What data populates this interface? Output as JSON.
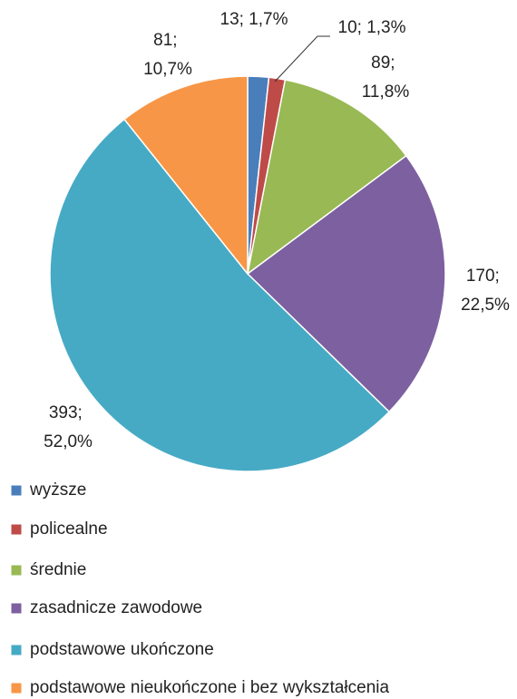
{
  "chart_data": {
    "type": "pie",
    "categories": [
      "wyższe",
      "policealne",
      "średnie",
      "zasadnicze zawodowe",
      "podstawowe ukończone",
      "podstawowe nieukończone i bez wykształcenia"
    ],
    "values": [
      13,
      10,
      89,
      170,
      393,
      81
    ],
    "value_labels": [
      "13; 1,7%",
      "10; 1,3%",
      "89; 11,8%",
      "170; 22,5%",
      "393; 52,0%",
      "81; 10,7%"
    ],
    "colors": [
      "#4a7ebb",
      "#be4b48",
      "#98b954",
      "#7d60a0",
      "#46aac5",
      "#f79646"
    ],
    "legend": "bottom"
  }
}
